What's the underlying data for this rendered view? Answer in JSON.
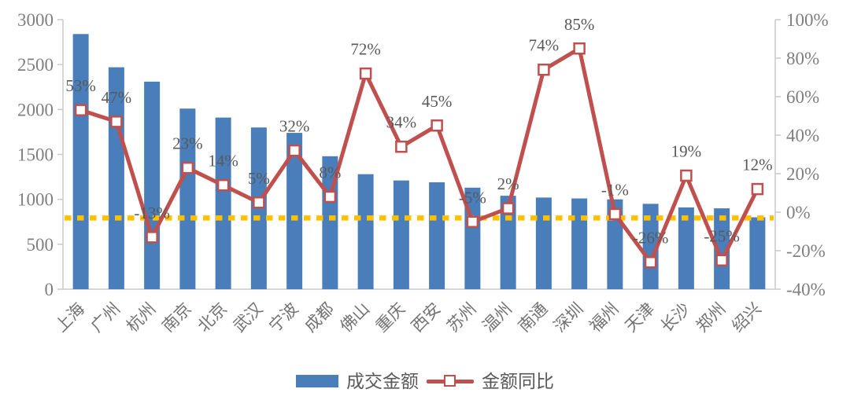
{
  "chart_data": {
    "type": "bar",
    "combo": "bar+line",
    "title": "",
    "xlabel": "",
    "ylabel_left": "",
    "ylabel_right": "",
    "grid": "off",
    "legend_position": "bottom",
    "categories": [
      "上海",
      "广州",
      "杭州",
      "南京",
      "北京",
      "武汉",
      "宁波",
      "成都",
      "佛山",
      "重庆",
      "西安",
      "苏州",
      "温州",
      "南通",
      "深圳",
      "福州",
      "天津",
      "长沙",
      "郑州",
      "绍兴"
    ],
    "series": [
      {
        "name": "成交金额",
        "type": "bar",
        "axis": "left",
        "color": "#4A7EBB",
        "values": [
          2840,
          2470,
          2310,
          2010,
          1910,
          1800,
          1740,
          1480,
          1280,
          1210,
          1190,
          1130,
          1040,
          1020,
          1010,
          1000,
          950,
          910,
          900,
          800
        ]
      },
      {
        "name": "金额同比",
        "type": "line",
        "axis": "right",
        "color": "#C0504D",
        "marker": "open-square",
        "values": [
          53,
          47,
          -13,
          23,
          14,
          5,
          32,
          8,
          72,
          34,
          45,
          -5,
          2,
          74,
          85,
          -1,
          -26,
          19,
          -25,
          12
        ],
        "labels": [
          "53%",
          "47%",
          "-13%",
          "23%",
          "14%",
          "5%",
          "32%",
          "8%",
          "72%",
          "34%",
          "45%",
          "-5%",
          "2%",
          "74%",
          "85%",
          "-1%",
          "-26%",
          "19%",
          "-25%",
          "12%"
        ]
      }
    ],
    "left_axis": {
      "min": 0,
      "max": 3000,
      "tick_values": [
        3000,
        2500,
        2000,
        1500,
        1000,
        500,
        0
      ],
      "tick_labels": [
        "3000",
        "2500",
        "2000",
        "1500",
        "1000",
        "500",
        "0"
      ]
    },
    "right_axis": {
      "min": -40,
      "max": 100,
      "tick_values": [
        100,
        80,
        60,
        40,
        20,
        0,
        -20,
        -40
      ],
      "tick_labels": [
        "100%",
        "80%",
        "60%",
        "40%",
        "20%",
        "0%",
        "-20%",
        "-40%"
      ]
    },
    "reference_line": {
      "axis": "right",
      "value": -3,
      "style": "dotted",
      "color": "#FFC000"
    },
    "colors": {
      "bar": "#4A7EBB",
      "line": "#C0504D",
      "marker_fill": "#FFFFFF",
      "reference": "#FFC000",
      "axis_text": "#7F7F7F",
      "data_label_text": "#595959",
      "axis_line": "#C9C9C9"
    }
  }
}
